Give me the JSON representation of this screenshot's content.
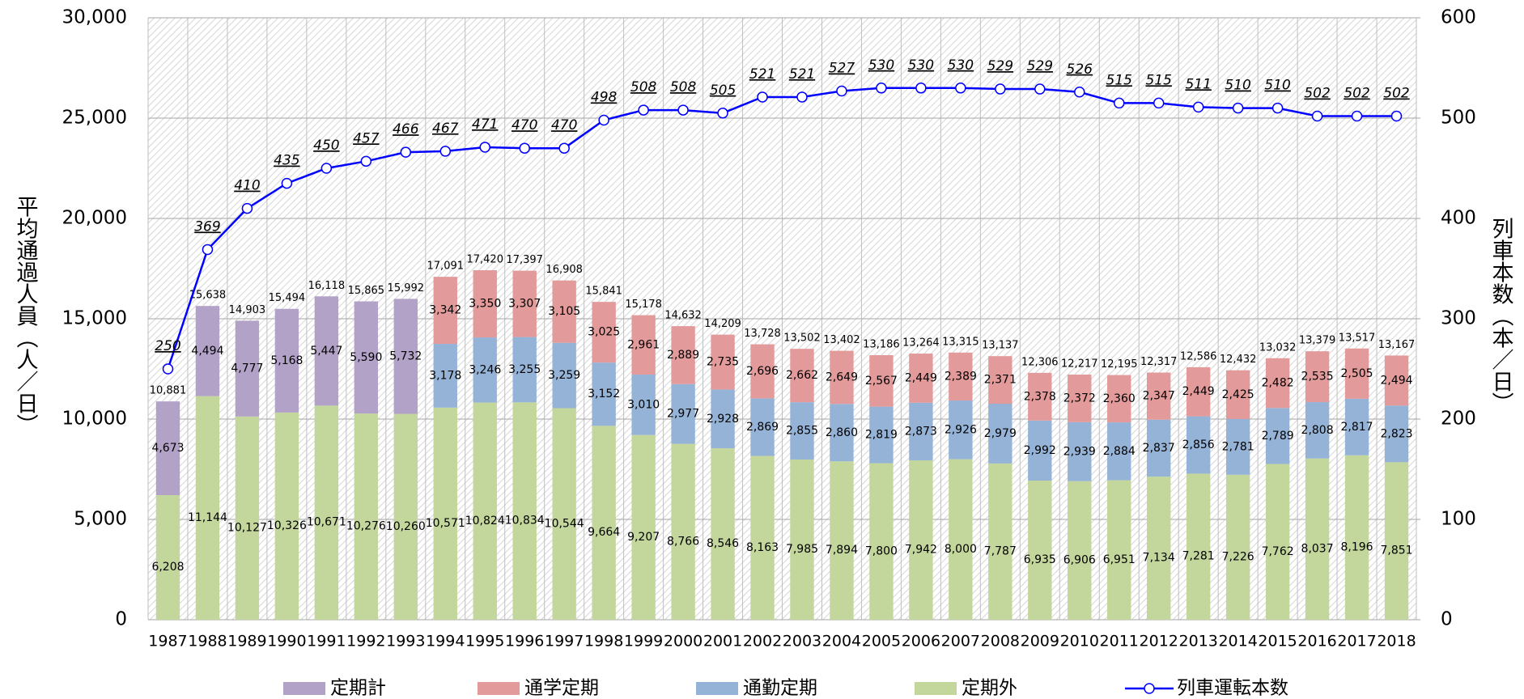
{
  "chart_data": {
    "type": "bar",
    "y_label": "平均通過人員（人／日）",
    "y2_label": "列車本数（本／日）",
    "categories": [
      "1987",
      "1988",
      "1989",
      "1990",
      "1991",
      "1992",
      "1993",
      "1994",
      "1995",
      "1996",
      "1997",
      "1998",
      "1999",
      "2000",
      "2001",
      "2002",
      "2003",
      "2004",
      "2005",
      "2006",
      "2007",
      "2008",
      "2009",
      "2010",
      "2011",
      "2012",
      "2013",
      "2014",
      "2015",
      "2016",
      "2017",
      "2018"
    ],
    "ylim": [
      0,
      30000
    ],
    "yticks": [
      0,
      {
        "value": 5000,
        "label": "5,000"
      },
      {
        "value": 10000,
        "label": "10,000"
      },
      {
        "value": 15000,
        "label": "15,000"
      },
      {
        "value": 20000,
        "label": "20,000"
      },
      {
        "value": 25000,
        "label": "25,000"
      },
      {
        "value": 30000,
        "label": "30,000"
      }
    ],
    "y2lim": [
      0,
      600
    ],
    "y2ticks": [
      0,
      100,
      200,
      300,
      400,
      500,
      600
    ],
    "grid": true,
    "legend": "bottom",
    "series": [
      {
        "name": "定期計",
        "type": "bar",
        "color": "#b3a2c7",
        "label_color": "#7030a0",
        "values": [
          4673,
          4494,
          4777,
          5168,
          5447,
          5590,
          5732,
          null,
          null,
          null,
          null,
          null,
          null,
          null,
          null,
          null,
          null,
          null,
          null,
          null,
          null,
          null,
          null,
          null,
          null,
          null,
          null,
          null,
          null,
          null,
          null,
          null
        ],
        "value_labels": [
          "4,673",
          "4,494",
          "4,777",
          "5,168",
          "5,447",
          "5,590",
          "5,732",
          null,
          null,
          null,
          null,
          null,
          null,
          null,
          null,
          null,
          null,
          null,
          null,
          null,
          null,
          null,
          null,
          null,
          null,
          null,
          null,
          null,
          null,
          null,
          null,
          null
        ]
      },
      {
        "name": "通学定期",
        "type": "bar",
        "color": "#e39a9a",
        "label_color": "#a5352f",
        "values": [
          null,
          null,
          null,
          null,
          null,
          null,
          null,
          3342,
          3350,
          3307,
          3105,
          3025,
          2961,
          2889,
          2735,
          2696,
          2662,
          2649,
          2567,
          2449,
          2389,
          2371,
          2378,
          2372,
          2360,
          2347,
          2449,
          2425,
          2482,
          2535,
          2505,
          2494
        ],
        "value_labels": [
          null,
          null,
          null,
          null,
          null,
          null,
          null,
          "3,342",
          "3,350",
          "3,307",
          "3,105",
          "3,025",
          "2,961",
          "2,889",
          "2,735",
          "2,696",
          "2,662",
          "2,649",
          "2,567",
          "2,449",
          "2,389",
          "2,371",
          "2,378",
          "2,372",
          "2,360",
          "2,347",
          "2,449",
          "2,425",
          "2,482",
          "2,535",
          "2,505",
          "2,494"
        ]
      },
      {
        "name": "通勤定期",
        "type": "bar",
        "color": "#95b3d7",
        "label_color": "#0000cc",
        "values": [
          null,
          null,
          null,
          null,
          null,
          null,
          null,
          3178,
          3246,
          3255,
          3259,
          3152,
          3010,
          2977,
          2928,
          2869,
          2855,
          2860,
          2819,
          2873,
          2926,
          2979,
          2992,
          2939,
          2884,
          2837,
          2856,
          2781,
          2789,
          2808,
          2817,
          2823
        ],
        "value_labels": [
          null,
          null,
          null,
          null,
          null,
          null,
          null,
          "3,178",
          "3,246",
          "3,255",
          "3,259",
          "3,152",
          "3,010",
          "2,977",
          "2,928",
          "2,869",
          "2,855",
          "2,860",
          "2,819",
          "2,873",
          "2,926",
          "2,979",
          "2,992",
          "2,939",
          "2,884",
          "2,837",
          "2,856",
          "2,781",
          "2,789",
          "2,808",
          "2,817",
          "2,823"
        ]
      },
      {
        "name": "定期外",
        "type": "bar",
        "color": "#c3d69b",
        "label_color": "#008000",
        "values": [
          6208,
          11144,
          10127,
          10326,
          10671,
          10276,
          10260,
          10571,
          10824,
          10834,
          10544,
          9664,
          9207,
          8766,
          8546,
          8163,
          7985,
          7894,
          7800,
          7942,
          8000,
          7787,
          6935,
          6906,
          6951,
          7134,
          7281,
          7226,
          7762,
          8037,
          8196,
          7851
        ],
        "value_labels": [
          "6,208",
          "11,144",
          "10,127",
          "10,326",
          "10,671",
          "10,276",
          "10,260",
          "10,571",
          "10,824",
          "10,834",
          "10,544",
          "9,664",
          "9,207",
          "8,766",
          "8,546",
          "8,163",
          "7,985",
          "7,894",
          "7,800",
          "7,942",
          "8,000",
          "7,787",
          "6,935",
          "6,906",
          "6,951",
          "7,134",
          "7,281",
          "7,226",
          "7,762",
          "8,037",
          "8,196",
          "7,851"
        ]
      },
      {
        "name": "列車運転本数",
        "type": "line",
        "axis": "y2",
        "color": "#0000ff",
        "label_color": "#0000ff",
        "values": [
          250,
          369,
          410,
          435,
          450,
          457,
          466,
          467,
          471,
          470,
          470,
          498,
          508,
          508,
          505,
          521,
          521,
          527,
          530,
          530,
          530,
          529,
          529,
          526,
          515,
          515,
          511,
          510,
          510,
          502,
          502,
          502
        ]
      }
    ],
    "totals": [
      10881,
      15638,
      14903,
      15494,
      16118,
      15865,
      15992,
      17091,
      17420,
      17397,
      16908,
      15841,
      15178,
      14632,
      14209,
      13728,
      13502,
      13402,
      13186,
      13264,
      13315,
      13137,
      12306,
      12217,
      12195,
      12317,
      12586,
      12432,
      13032,
      13379,
      13517,
      13167
    ],
    "total_labels": [
      "10,881",
      "15,638",
      "14,903",
      "15,494",
      "16,118",
      "15,865",
      "15,992",
      "17,091",
      "17,420",
      "17,397",
      "16,908",
      "15,841",
      "15,178",
      "14,632",
      "14,209",
      "13,728",
      "13,502",
      "13,402",
      "13,186",
      "13,264",
      "13,315",
      "13,137",
      "12,306",
      "12,217",
      "12,195",
      "12,317",
      "12,586",
      "12,432",
      "13,032",
      "13,379",
      "13,517",
      "13,167"
    ]
  }
}
